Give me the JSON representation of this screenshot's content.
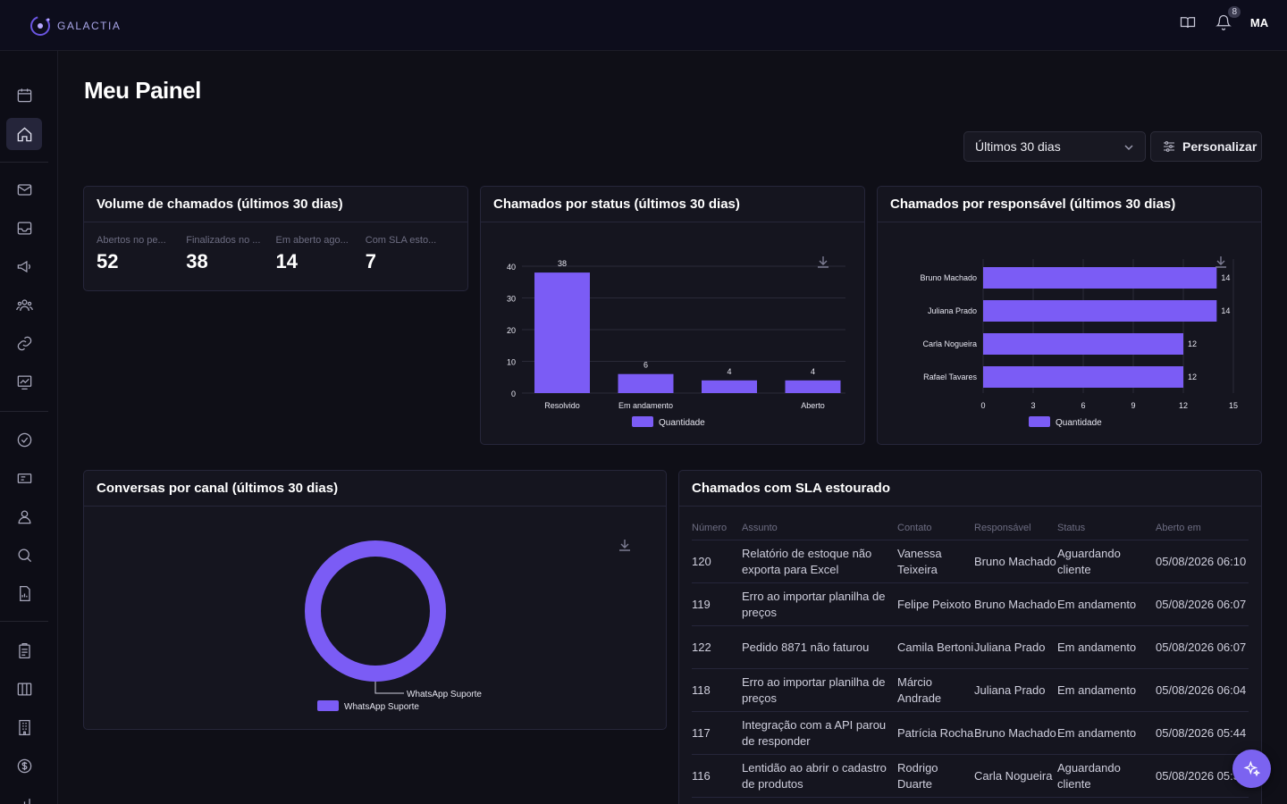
{
  "app": {
    "brand": "GALACTIA"
  },
  "header": {
    "notifications_count": "8",
    "avatar_initials": "MA"
  },
  "page": {
    "title": "Meu Painel"
  },
  "toolbar": {
    "period_value": "Últimos 30 dias",
    "customize_label": "Personalizar"
  },
  "volume_card": {
    "title": "Volume de chamados (últimos 30 dias)",
    "kpis": [
      {
        "label": "Abertos no pe...",
        "value": "52"
      },
      {
        "label": "Finalizados no ...",
        "value": "38"
      },
      {
        "label": "Em aberto ago...",
        "value": "14"
      },
      {
        "label": "Com SLA esto...",
        "value": "7"
      }
    ]
  },
  "status_card": {
    "title": "Chamados por status (últimos 30 dias)",
    "chart_data": {
      "type": "bar",
      "categories": [
        "Resolvido",
        "Em andamento",
        "",
        "Aberto"
      ],
      "values": [
        38,
        6,
        4,
        4
      ],
      "y_ticks": [
        "0",
        "10",
        "20",
        "30",
        "40"
      ],
      "ylim": [
        0,
        40
      ],
      "legend": "Quantidade",
      "legend_position": "bottom",
      "color": "#7b5cf5"
    }
  },
  "responsible_card": {
    "title": "Chamados por responsável (últimos 30 dias)",
    "chart_data": {
      "type": "bar",
      "orientation": "horizontal",
      "categories": [
        "Bruno Machado",
        "Juliana Prado",
        "Carla Nogueira",
        "Rafael Tavares"
      ],
      "values": [
        14,
        14,
        12,
        12
      ],
      "x_ticks": [
        "0",
        "3",
        "6",
        "9",
        "12",
        "15"
      ],
      "xlim": [
        0,
        15
      ],
      "legend": "Quantidade",
      "legend_position": "bottom",
      "color": "#7b5cf5"
    }
  },
  "channel_card": {
    "title": "Conversas por canal (últimos 30 dias)",
    "chart_data": {
      "type": "pie",
      "donut": true,
      "labels": [
        "WhatsApp Suporte"
      ],
      "values": [
        100
      ],
      "slice_label": "WhatsApp Suporte",
      "legend": "WhatsApp Suporte",
      "legend_position": "bottom",
      "color": "#7b5cf5"
    }
  },
  "sla_card": {
    "title": "Chamados com SLA estourado",
    "columns": [
      "Número",
      "Assunto",
      "Contato",
      "Responsável",
      "Status",
      "Aberto em"
    ],
    "rows": [
      {
        "numero": "120",
        "assunto": "Relatório de estoque não exporta para Excel",
        "contato": "Vanessa Teixeira",
        "responsavel": "Bruno Machado",
        "status": "Aguardando cliente",
        "aberto": "05/08/2026 06:10"
      },
      {
        "numero": "119",
        "assunto": "Erro ao importar planilha de preços",
        "contato": "Felipe Peixoto",
        "responsavel": "Bruno Machado",
        "status": "Em andamento",
        "aberto": "05/08/2026 06:07"
      },
      {
        "numero": "122",
        "assunto": "Pedido 8871 não faturou",
        "contato": "Camila Bertoni",
        "responsavel": "Juliana Prado",
        "status": "Em andamento",
        "aberto": "05/08/2026 06:07"
      },
      {
        "numero": "118",
        "assunto": "Erro ao importar planilha de preços",
        "contato": "Márcio Andrade",
        "responsavel": "Juliana Prado",
        "status": "Em andamento",
        "aberto": "05/08/2026 06:04"
      },
      {
        "numero": "117",
        "assunto": "Integração com a API parou de responder",
        "contato": "Patrícia Rocha",
        "responsavel": "Bruno Machado",
        "status": "Em andamento",
        "aberto": "05/08/2026 05:44"
      },
      {
        "numero": "116",
        "assunto": "Lentidão ao abrir o cadastro de produtos",
        "contato": "Rodrigo Duarte",
        "responsavel": "Carla Nogueira",
        "status": "Aguardando cliente",
        "aberto": "05/08/2026 05:36"
      }
    ]
  },
  "sidebar": {
    "items": [
      {
        "icon": "calendar-icon"
      },
      {
        "icon": "home-icon",
        "active": true
      },
      {
        "icon": "mail-icon"
      },
      {
        "icon": "inbox-icon"
      },
      {
        "icon": "megaphone-icon"
      },
      {
        "icon": "users-icon"
      },
      {
        "icon": "link-icon"
      },
      {
        "icon": "chart-board-icon"
      },
      {
        "icon": "check-circle-icon"
      },
      {
        "icon": "ticket-icon"
      },
      {
        "icon": "user-icon"
      },
      {
        "icon": "search-icon"
      },
      {
        "icon": "report-icon"
      },
      {
        "icon": "clipboard-icon"
      },
      {
        "icon": "columns-icon"
      },
      {
        "icon": "building-icon"
      },
      {
        "icon": "dollar-icon"
      },
      {
        "icon": "bar-chart-icon"
      }
    ]
  },
  "colors": {
    "accent": "#7b5cf5",
    "background": "#0f0f17",
    "card": "#15151f"
  }
}
